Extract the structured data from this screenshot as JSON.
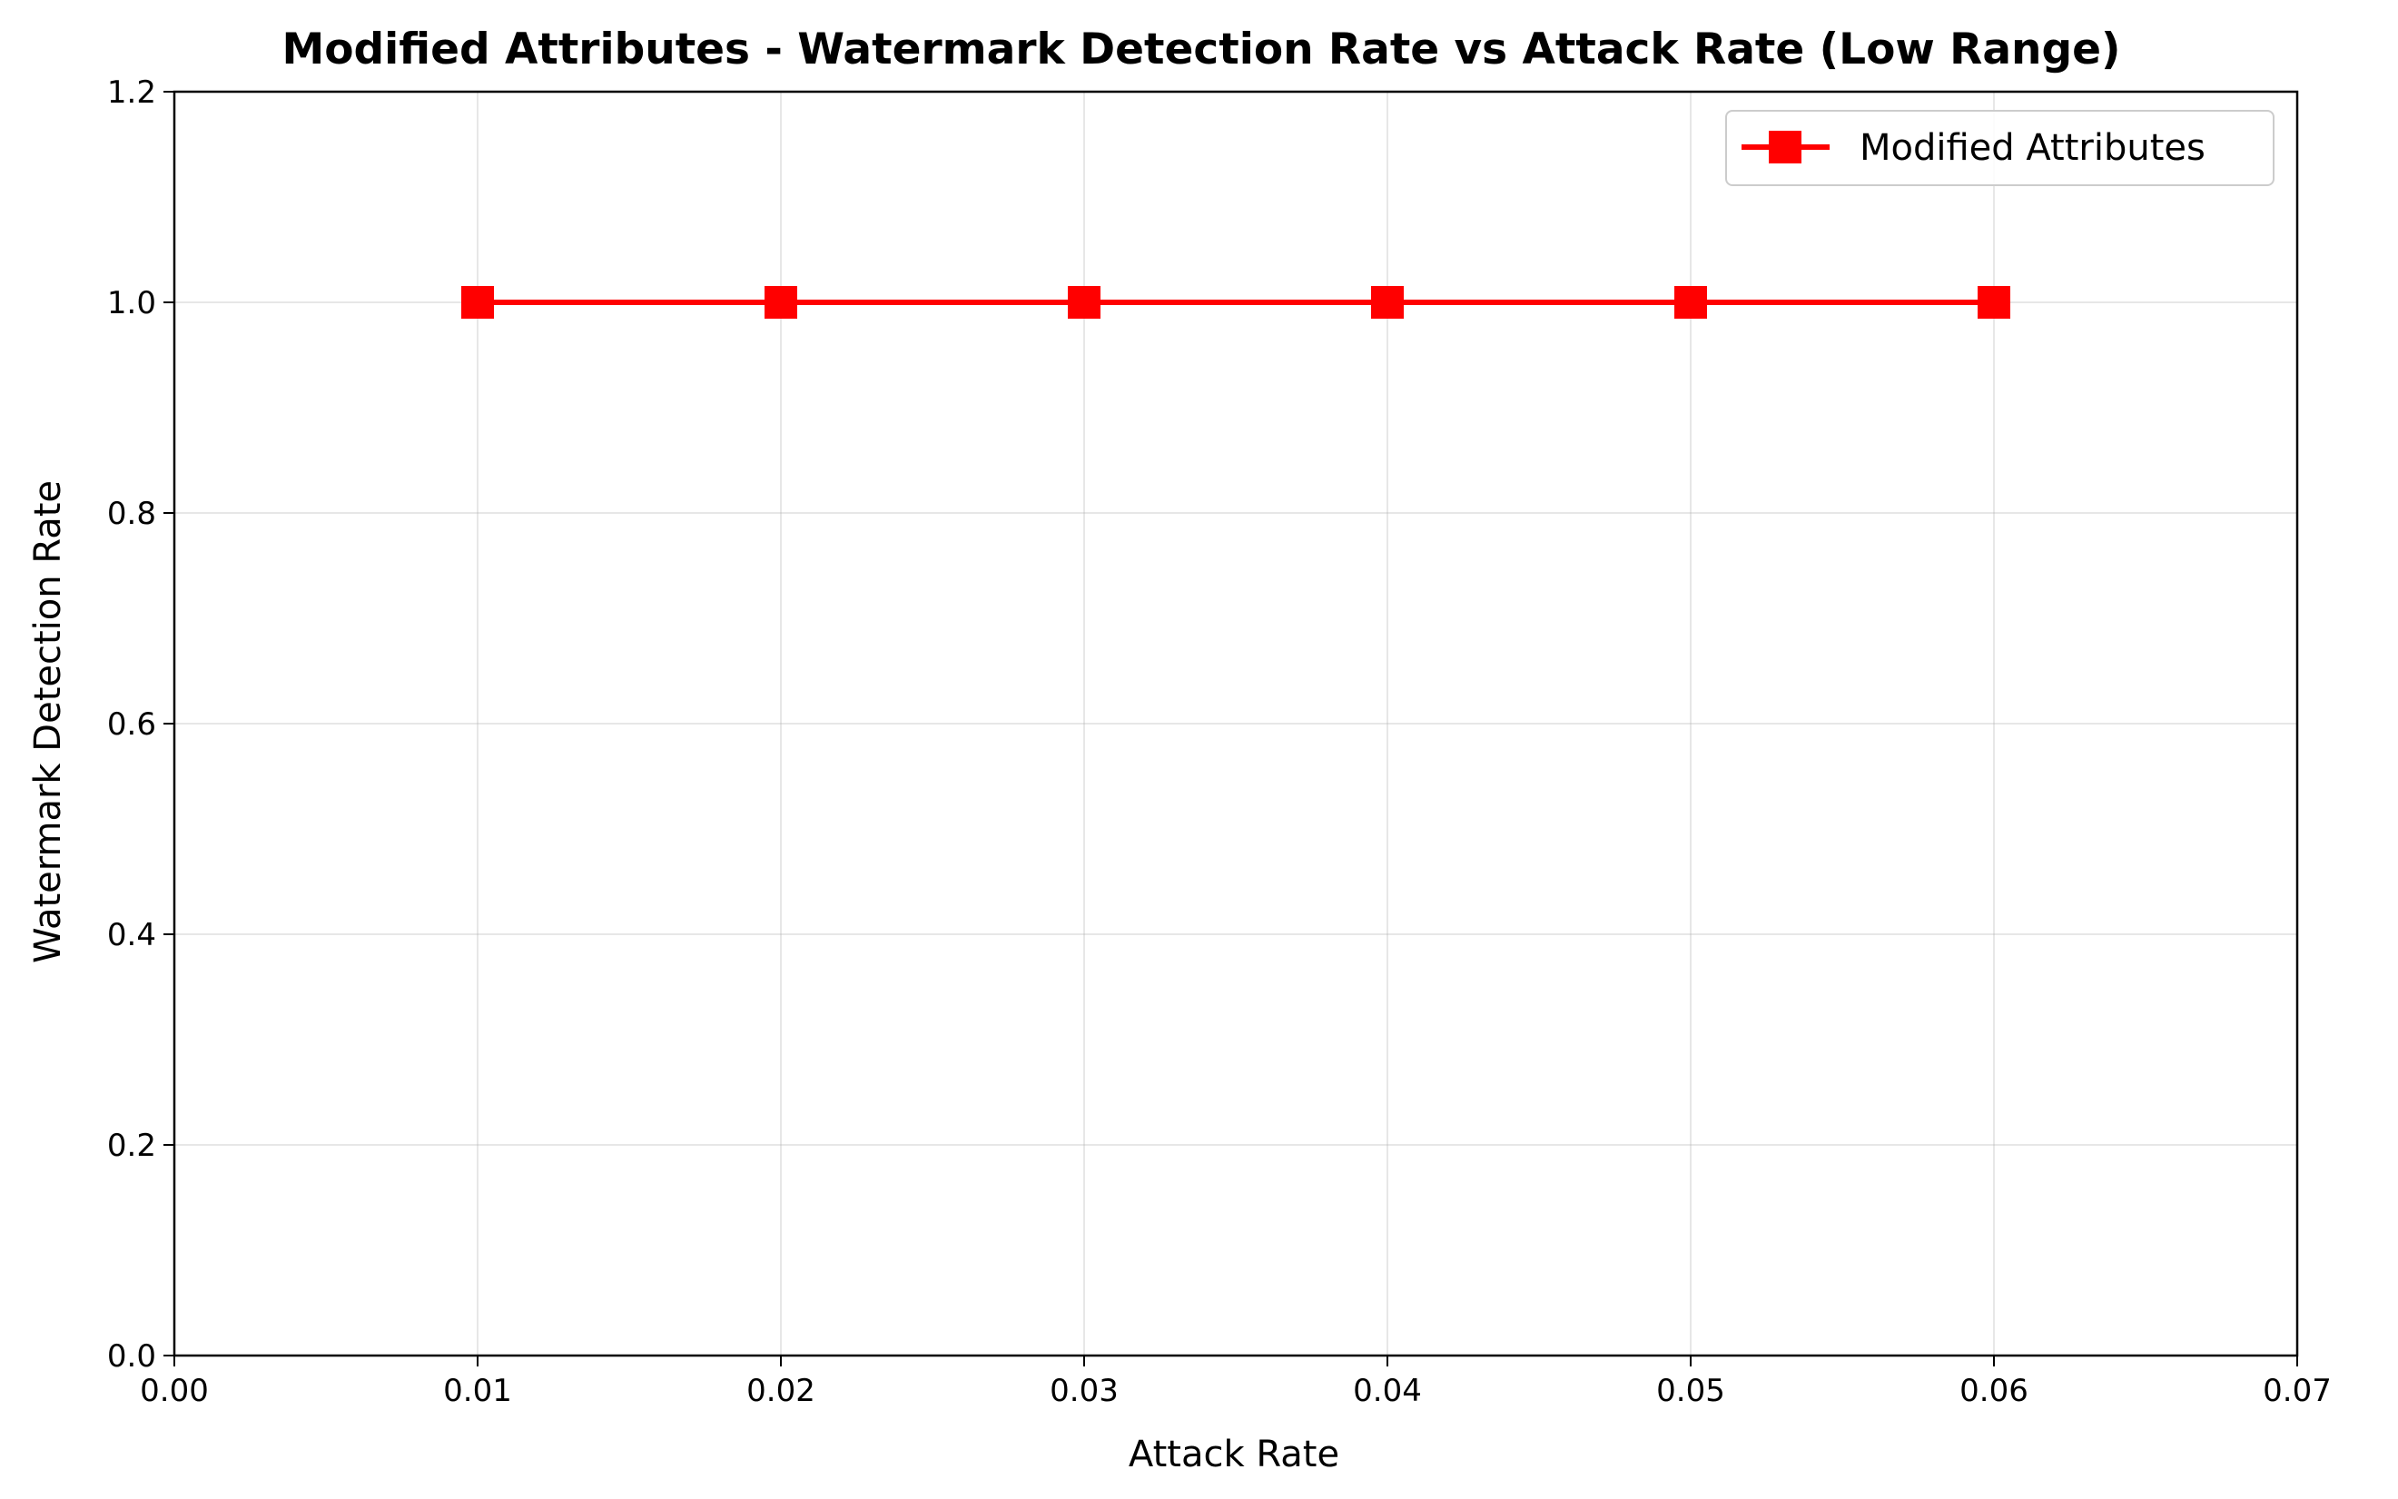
{
  "chart_data": {
    "type": "line",
    "title": "Modified Attributes - Watermark Detection Rate vs Attack Rate (Low Range)",
    "xlabel": "Attack Rate",
    "ylabel": "Watermark Detection Rate",
    "xlim": [
      0.0,
      0.07
    ],
    "ylim": [
      0.0,
      1.2
    ],
    "xticks": [
      0.0,
      0.01,
      0.02,
      0.03,
      0.04,
      0.05,
      0.06,
      0.07
    ],
    "xtick_labels": [
      "0.00",
      "0.01",
      "0.02",
      "0.03",
      "0.04",
      "0.05",
      "0.06",
      "0.07"
    ],
    "yticks": [
      0.0,
      0.2,
      0.4,
      0.6,
      0.8,
      1.0,
      1.2
    ],
    "ytick_labels": [
      "0.0",
      "0.2",
      "0.4",
      "0.6",
      "0.8",
      "1.0",
      "1.2"
    ],
    "grid": true,
    "legend_position": "top-right",
    "series": [
      {
        "name": "Modified Attributes",
        "color": "#ff0000",
        "marker": "square",
        "x": [
          0.01,
          0.02,
          0.03,
          0.04,
          0.05,
          0.06
        ],
        "y": [
          1.0,
          1.0,
          1.0,
          1.0,
          1.0,
          1.0
        ]
      }
    ]
  }
}
